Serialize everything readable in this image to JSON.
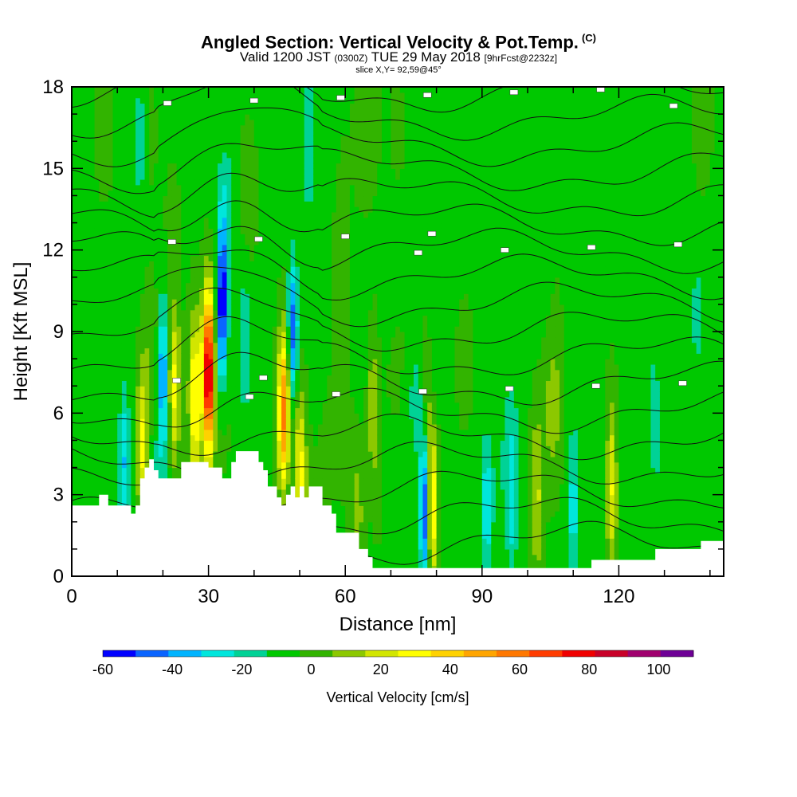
{
  "header": {
    "title": "Angled Section: Vertical Velocity & Pot.Temp.",
    "title_unit": "(C)",
    "valid_prefix": "Valid 1200 JST",
    "valid_utc": "(0300Z)",
    "valid_date": "TUE 29 May 2018",
    "forecast_tag": "[9hrFcst@2232z]",
    "slice": "slice X,Y= 92,59@45°"
  },
  "chart_data": {
    "type": "heatmap",
    "title": "Angled Section: Vertical Velocity & Pot.Temp. (C)",
    "xlabel": "Distance [nm]",
    "ylabel": "Height [Kft MSL]",
    "xlim": [
      0,
      143
    ],
    "ylim": [
      0,
      18
    ],
    "x_ticks": [
      "0",
      "30",
      "60",
      "90",
      "120"
    ],
    "y_ticks": [
      "0",
      "3",
      "6",
      "9",
      "12",
      "15",
      "18"
    ],
    "colorbar": {
      "label": "Vertical Velocity [cm/s]",
      "ticks": [
        "-60",
        "-40",
        "-20",
        "0",
        "20",
        "40",
        "60",
        "80",
        "100"
      ],
      "min": -60,
      "max": 110,
      "step": 10,
      "colors": [
        "#0000ff",
        "#0a64ff",
        "#00b4ff",
        "#00e6dc",
        "#00d296",
        "#00c800",
        "#32b400",
        "#8cc800",
        "#d2e600",
        "#ffff00",
        "#ffd200",
        "#ffa500",
        "#ff7800",
        "#ff3c00",
        "#f00000",
        "#c80028",
        "#a0006e",
        "#6e0096"
      ]
    },
    "background_value": 0,
    "updrafts": [
      {
        "x": 30,
        "y_center": 7.5,
        "peak": 100
      },
      {
        "x": 27,
        "y_center": 6.5,
        "peak": 45
      },
      {
        "x": 22.5,
        "y_center": 7,
        "peak": 35
      },
      {
        "x": 46.5,
        "y_center": 6,
        "peak": 65
      },
      {
        "x": 50,
        "y_center": 4,
        "peak": 35
      },
      {
        "x": 15.5,
        "y_center": 4.8,
        "peak": 35
      },
      {
        "x": 79,
        "y_center": 2.5,
        "peak": 45
      },
      {
        "x": 102,
        "y_center": 3,
        "peak": 25
      },
      {
        "x": 118.5,
        "y_center": 3.5,
        "peak": 45
      },
      {
        "x": 66,
        "y_center": 6.5,
        "peak": 20
      },
      {
        "x": 78,
        "y_center": 6.5,
        "peak": 20
      }
    ],
    "downdrafts": [
      {
        "x": 33,
        "y_center": 10,
        "peak": -55
      },
      {
        "x": 20,
        "y_center": 7.5,
        "peak": -40
      },
      {
        "x": 48.5,
        "y_center": 9,
        "peak": -45
      },
      {
        "x": 52,
        "y_center": 16,
        "peak": -20
      },
      {
        "x": 77.5,
        "y_center": 2.5,
        "peak": -60
      },
      {
        "x": 91,
        "y_center": 2.5,
        "peak": -25
      },
      {
        "x": 110,
        "y_center": 2.5,
        "peak": -25
      },
      {
        "x": 96.5,
        "y_center": 2.5,
        "peak": -20
      },
      {
        "x": 11.5,
        "y_center": 4.5,
        "peak": -25
      },
      {
        "x": 15,
        "y_center": 16,
        "peak": -15
      },
      {
        "x": 38,
        "y_center": 8.5,
        "peak": -20
      }
    ],
    "terrain_kft": [
      [
        0,
        2.6
      ],
      [
        6,
        2.6
      ],
      [
        6,
        3
      ],
      [
        8,
        3
      ],
      [
        8,
        2.6
      ],
      [
        13,
        2.6
      ],
      [
        13,
        2.3
      ],
      [
        14,
        2.3
      ],
      [
        14,
        2.6
      ],
      [
        15,
        2.6
      ],
      [
        15,
        3.6
      ],
      [
        16,
        3.6
      ],
      [
        16,
        4
      ],
      [
        17,
        4
      ],
      [
        17,
        4.3
      ],
      [
        18,
        4.3
      ],
      [
        18,
        3.9
      ],
      [
        19,
        3.9
      ],
      [
        19,
        3.6
      ],
      [
        24,
        3.6
      ],
      [
        24,
        4.2
      ],
      [
        30,
        4.2
      ],
      [
        30,
        4
      ],
      [
        33,
        4
      ],
      [
        33,
        3.6
      ],
      [
        35,
        3.6
      ],
      [
        35,
        4.2
      ],
      [
        36,
        4.2
      ],
      [
        36,
        4.6
      ],
      [
        41,
        4.6
      ],
      [
        41,
        4.2
      ],
      [
        42,
        4.2
      ],
      [
        42,
        3.9
      ],
      [
        43,
        3.9
      ],
      [
        43,
        3.3
      ],
      [
        45,
        3.3
      ],
      [
        45,
        2.9
      ],
      [
        46,
        2.9
      ],
      [
        46,
        2.6
      ],
      [
        47,
        2.6
      ],
      [
        47,
        3
      ],
      [
        48,
        3
      ],
      [
        48,
        3.3
      ],
      [
        49,
        3.3
      ],
      [
        49,
        2.9
      ],
      [
        50,
        2.9
      ],
      [
        50,
        3.3
      ],
      [
        51,
        3.3
      ],
      [
        51,
        2.9
      ],
      [
        52,
        2.9
      ],
      [
        52,
        3.3
      ],
      [
        55,
        3.3
      ],
      [
        55,
        2.6
      ],
      [
        57,
        2.6
      ],
      [
        57,
        2.3
      ],
      [
        58,
        2.3
      ],
      [
        58,
        1.6
      ],
      [
        63,
        1.6
      ],
      [
        63,
        1
      ],
      [
        65,
        1
      ],
      [
        65,
        0.7
      ],
      [
        66,
        0.7
      ],
      [
        66,
        0.3
      ],
      [
        114,
        0.3
      ],
      [
        114,
        0.6
      ],
      [
        128,
        0.6
      ],
      [
        128,
        1
      ],
      [
        138,
        1
      ],
      [
        138,
        1.3
      ],
      [
        143,
        1.3
      ]
    ],
    "theta_label_count": 24
  }
}
